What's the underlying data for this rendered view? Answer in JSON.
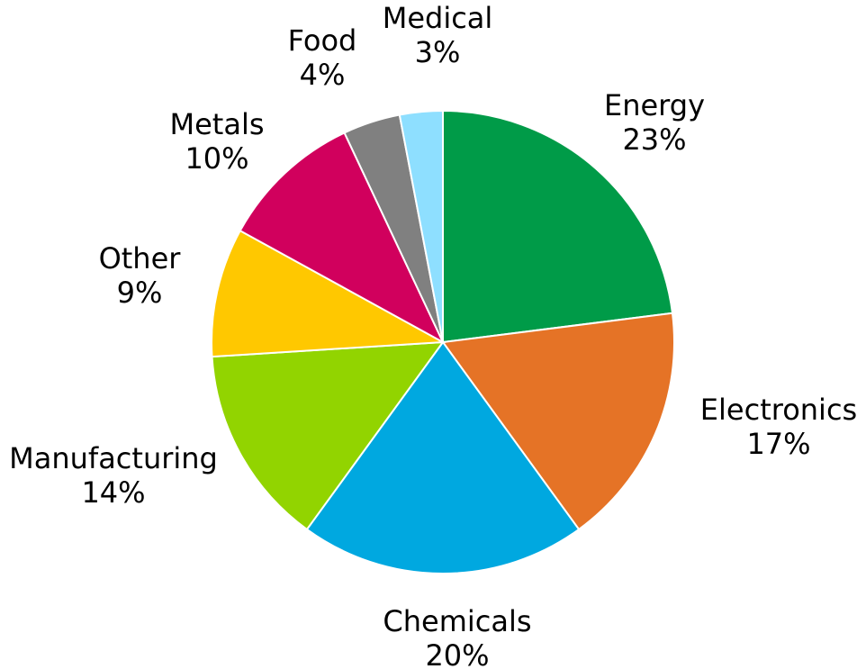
{
  "chart_data": {
    "type": "pie",
    "title": "",
    "start_angle_deg": 0,
    "direction": "clockwise",
    "slices": [
      {
        "label": "Energy",
        "percent_label": "23%",
        "value": 23,
        "color": "#009B48"
      },
      {
        "label": "Electronics",
        "percent_label": "17%",
        "value": 17,
        "color": "#E57326"
      },
      {
        "label": "Chemicals",
        "percent_label": "20%",
        "value": 20,
        "color": "#00A8E0"
      },
      {
        "label": "Manufacturing",
        "percent_label": "14%",
        "value": 14,
        "color": "#92D400"
      },
      {
        "label": "Other",
        "percent_label": "9%",
        "value": 9,
        "color": "#FFC800"
      },
      {
        "label": "Metals",
        "percent_label": "10%",
        "value": 10,
        "color": "#D1005D"
      },
      {
        "label": "Food",
        "percent_label": "4%",
        "value": 4,
        "color": "#808080"
      },
      {
        "label": "Medical",
        "percent_label": "3%",
        "value": 3,
        "color": "#8EDFFF"
      }
    ]
  }
}
